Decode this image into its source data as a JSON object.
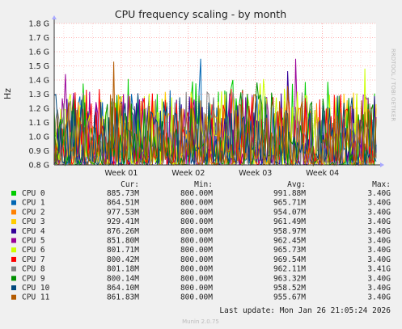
{
  "chart_data": {
    "type": "line",
    "title": "CPU frequency scaling - by month",
    "ylabel": "Hz",
    "side_label": "RRDTOOL / TOBI OETIKER",
    "y_ticks": [
      "0.8 G",
      "0.9 G",
      "1.0 G",
      "1.1 G",
      "1.2 G",
      "1.3 G",
      "1.4 G",
      "1.5 G",
      "1.6 G",
      "1.7 G",
      "1.8 G"
    ],
    "y_tick_values": [
      0.8,
      0.9,
      1.0,
      1.1,
      1.2,
      1.3,
      1.4,
      1.5,
      1.6,
      1.7,
      1.8
    ],
    "ylim": [
      0.8,
      1.8
    ],
    "x_ticks": [
      "Week 01",
      "Week 02",
      "Week 03",
      "Week 04"
    ],
    "x_tick_positions": [
      1.0,
      2.0,
      3.0,
      4.0
    ],
    "xlim": [
      0.0,
      4.8
    ],
    "grid": true,
    "series": [
      {
        "name": "CPU 0",
        "color": "#00cc00",
        "cur": "885.73M",
        "min": "800.00M",
        "avg": "991.88M",
        "max": "3.40G"
      },
      {
        "name": "CPU 1",
        "color": "#0066b3",
        "cur": "864.51M",
        "min": "800.00M",
        "avg": "965.71M",
        "max": "3.40G"
      },
      {
        "name": "CPU 2",
        "color": "#ff8000",
        "cur": "977.53M",
        "min": "800.00M",
        "avg": "954.07M",
        "max": "3.40G"
      },
      {
        "name": "CPU 3",
        "color": "#ffcc00",
        "cur": "929.41M",
        "min": "800.00M",
        "avg": "961.49M",
        "max": "3.40G"
      },
      {
        "name": "CPU 4",
        "color": "#330099",
        "cur": "876.26M",
        "min": "800.00M",
        "avg": "958.97M",
        "max": "3.40G"
      },
      {
        "name": "CPU 5",
        "color": "#990099",
        "cur": "851.80M",
        "min": "800.00M",
        "avg": "962.45M",
        "max": "3.40G"
      },
      {
        "name": "CPU 6",
        "color": "#ccff00",
        "cur": "801.71M",
        "min": "800.00M",
        "avg": "965.73M",
        "max": "3.40G"
      },
      {
        "name": "CPU 7",
        "color": "#ff0000",
        "cur": "800.42M",
        "min": "800.00M",
        "avg": "969.54M",
        "max": "3.40G"
      },
      {
        "name": "CPU 8",
        "color": "#808080",
        "cur": "801.18M",
        "min": "800.00M",
        "avg": "962.11M",
        "max": "3.41G"
      },
      {
        "name": "CPU 9",
        "color": "#008f00",
        "cur": "800.14M",
        "min": "800.00M",
        "avg": "963.32M",
        "max": "3.40G"
      },
      {
        "name": "CPU 10",
        "color": "#00487d",
        "cur": "864.10M",
        "min": "800.00M",
        "avg": "958.52M",
        "max": "3.40G"
      },
      {
        "name": "CPU 11",
        "color": "#b35a00",
        "cur": "861.83M",
        "min": "800.00M",
        "avg": "955.67M",
        "max": "3.40G"
      }
    ]
  },
  "legend": {
    "headers": {
      "cur": "Cur:",
      "min": "Min:",
      "avg": "Avg:",
      "max": "Max:"
    }
  },
  "footer": {
    "last_update": "Last update: Mon Jan 26 21:05:24 2026",
    "version": "Munin 2.0.75"
  },
  "colors": {
    "background": "#f0f0f0",
    "plot_background": "#ffffff",
    "grid": "#ffb0b0",
    "axis": "#333333"
  }
}
